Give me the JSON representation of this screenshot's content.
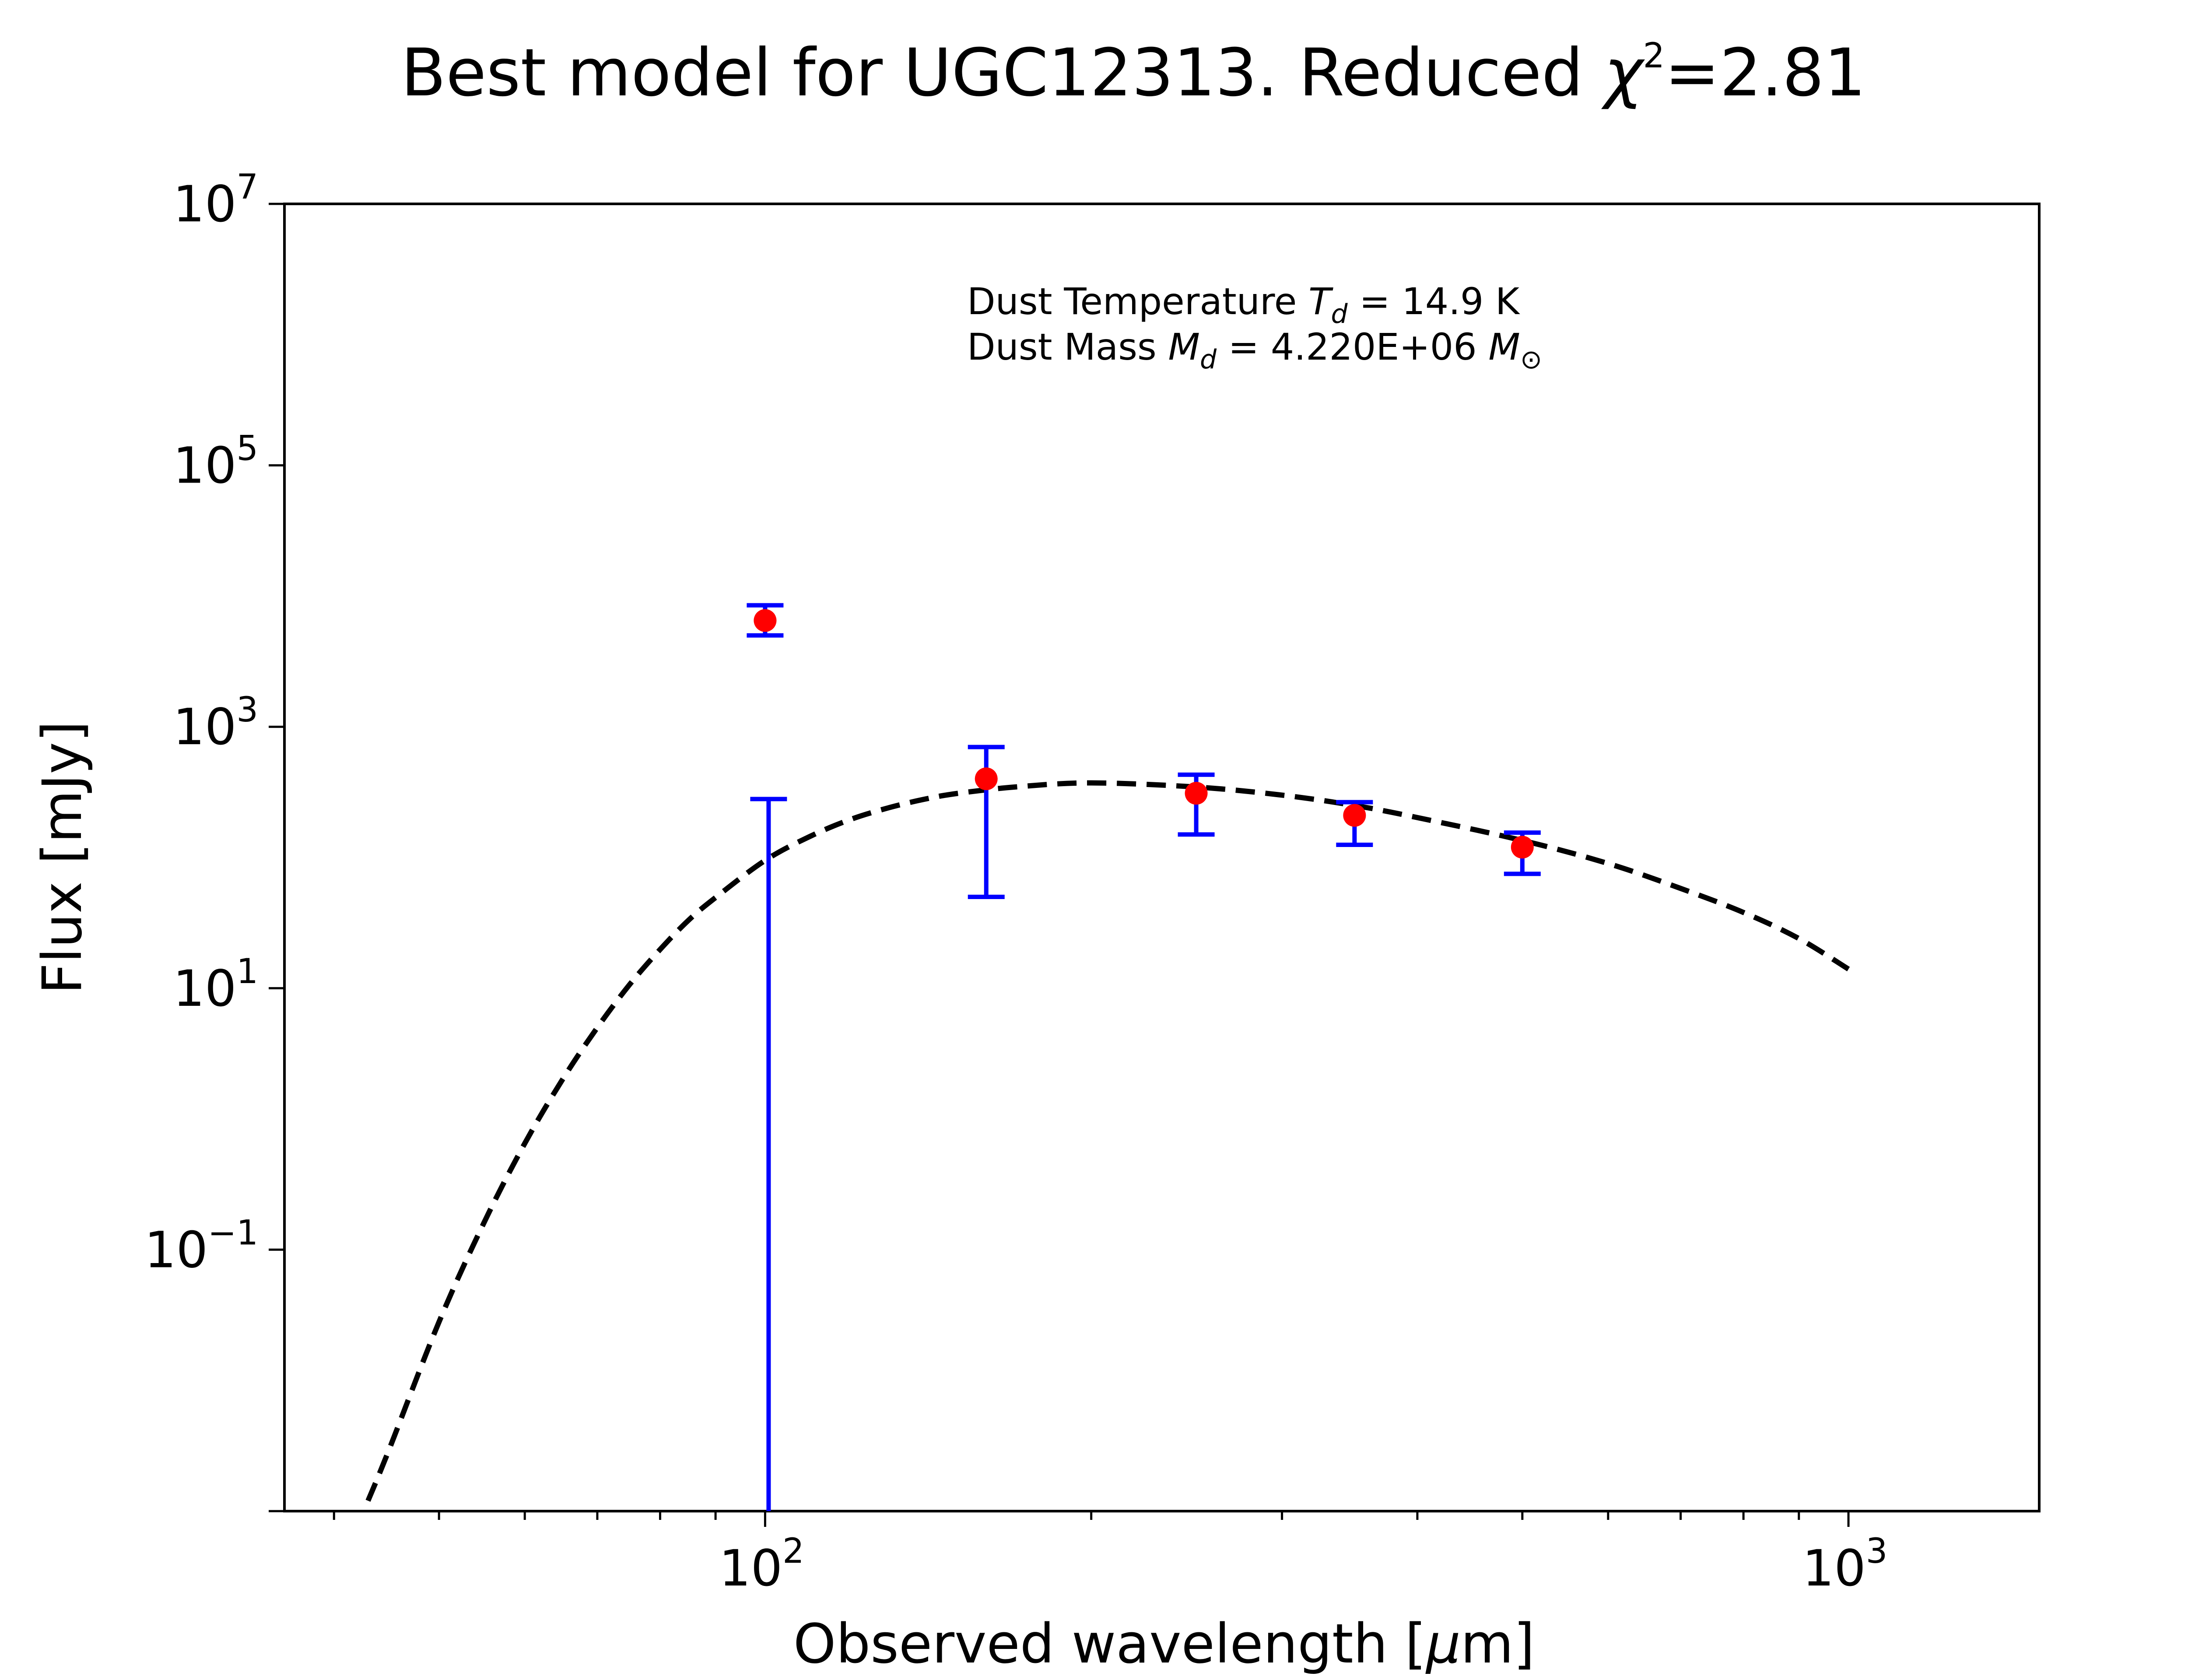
{
  "chart_data": {
    "type": "scatter",
    "title_prefix": "Best model for UGC12313. Reduced ",
    "title_symbol": "χ",
    "title_exp": "2",
    "title_suffix": "=2.81",
    "xlabel_prefix": "Observed wavelength [",
    "xlabel_symbol": "μ",
    "xlabel_suffix": "m]",
    "ylabel": "Flux [mJy]",
    "xscale": "log",
    "yscale": "log",
    "xlim": [
      36,
      1500
    ],
    "ylim": [
      0.001,
      10000000
    ],
    "x_ticks": [
      {
        "value": 100,
        "base": "10",
        "exp": "2"
      },
      {
        "value": 1000,
        "base": "10",
        "exp": "3"
      }
    ],
    "y_ticks": [
      {
        "value": 0.1,
        "base": "10",
        "exp": "−1"
      },
      {
        "value": 10,
        "base": "10",
        "exp": "1"
      },
      {
        "value": 1000,
        "base": "10",
        "exp": "3"
      },
      {
        "value": 100000,
        "base": "10",
        "exp": "5"
      },
      {
        "value": 10000000,
        "base": "10",
        "exp": "7"
      }
    ],
    "grid": false,
    "annotations": {
      "temp_label": "Dust Temperature ",
      "temp_symbol": "T",
      "temp_sub": "d",
      "temp_value": " = 14.9 K",
      "mass_label": "Dust Mass ",
      "mass_symbol": "M",
      "mass_sub": "d",
      "mass_value": " = 4.220E+06 ",
      "mass_unit_symbol": "M",
      "mass_unit_sub": "⊙"
    },
    "observations": {
      "marker_color": "#ff0000",
      "errorbar_color": "#0000ff",
      "points": [
        {
          "x": 100,
          "y": 6500,
          "yerr_low": 1500,
          "yerr_high": 2000
        },
        {
          "x": 100,
          "y": 0.001,
          "yerr_low": 0,
          "yerr_high": 280
        },
        {
          "x": 160,
          "y": 400,
          "yerr_low": 350,
          "yerr_high": 300
        },
        {
          "x": 250,
          "y": 310,
          "yerr_low": 160,
          "yerr_high": 120
        },
        {
          "x": 350,
          "y": 210,
          "yerr_low": 85,
          "yerr_high": 55
        },
        {
          "x": 500,
          "y": 120,
          "yerr_low": 45,
          "yerr_high": 35
        }
      ]
    },
    "model": {
      "line_style": "dashed",
      "color": "#000000",
      "x": [
        43,
        45,
        50,
        55,
        60,
        65,
        70,
        75,
        80,
        85,
        90,
        100,
        110,
        120,
        130,
        140,
        150,
        170,
        200,
        250,
        300,
        350,
        400,
        500,
        600,
        700,
        800,
        900,
        1000
      ],
      "y": [
        0.0012,
        0.003,
        0.028,
        0.16,
        0.65,
        2.0,
        5.0,
        10.7,
        19.8,
        33.2,
        49.4,
        95,
        145,
        196,
        240,
        278,
        308,
        346,
        372,
        346,
        300,
        250,
        202,
        135,
        90,
        58,
        38,
        24,
        14
      ]
    }
  }
}
